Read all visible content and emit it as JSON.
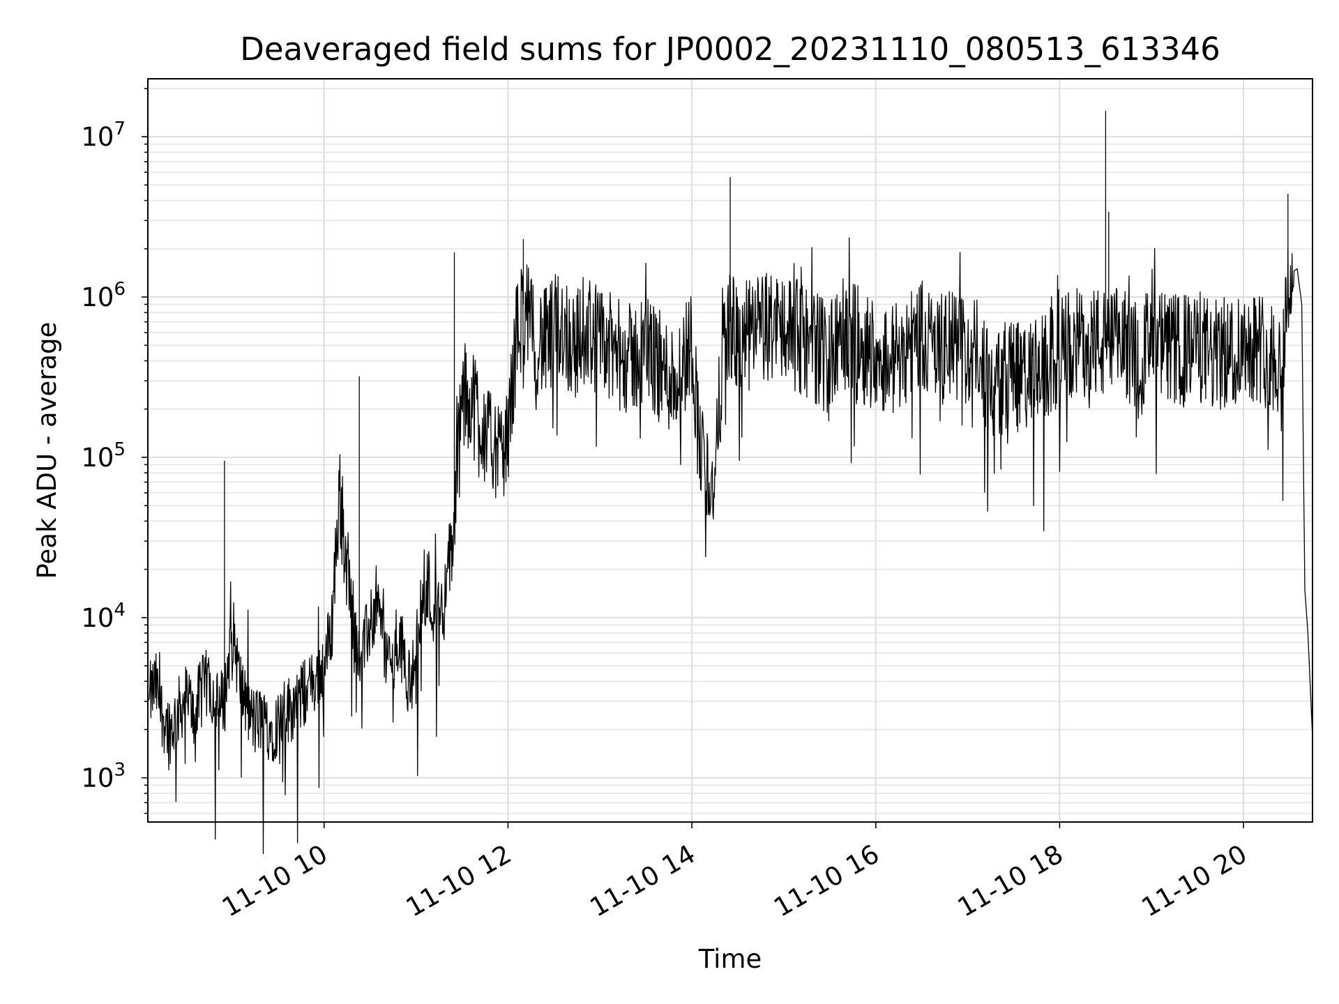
{
  "chart_data": {
    "type": "line",
    "title": "Deaveraged field sums for JP0002_20231110_080513_613346",
    "xlabel": "Time",
    "ylabel": "Peak ADU - average",
    "yscale": "log",
    "grid": true,
    "grid_minor": true,
    "xlim": [
      "2023-11-10 08:05",
      "2023-11-10 20:45"
    ],
    "ylim": [
      530,
      23000000
    ],
    "x_ticks": [
      {
        "t": "2023-11-10 10:00",
        "label": "11-10 10"
      },
      {
        "t": "2023-11-10 12:00",
        "label": "11-10 12"
      },
      {
        "t": "2023-11-10 14:00",
        "label": "11-10 14"
      },
      {
        "t": "2023-11-10 16:00",
        "label": "11-10 16"
      },
      {
        "t": "2023-11-10 18:00",
        "label": "11-10 18"
      },
      {
        "t": "2023-11-10 20:00",
        "label": "11-10 20"
      }
    ],
    "y_ticks": [
      {
        "value": 1000,
        "base": "10",
        "exp": "3"
      },
      {
        "value": 10000,
        "base": "10",
        "exp": "4"
      },
      {
        "value": 100000,
        "base": "10",
        "exp": "5"
      },
      {
        "value": 1000000,
        "base": "10",
        "exp": "6"
      },
      {
        "value": 10000000,
        "base": "10",
        "exp": "7"
      }
    ],
    "line_color": "#000000",
    "series": [
      {
        "x": [
          "08:05",
          "08:10",
          "08:15",
          "08:20",
          "08:25",
          "08:30",
          "08:35",
          "08:40",
          "08:45",
          "08:50",
          "08:55",
          "09:00",
          "09:05",
          "09:10",
          "09:15",
          "09:20",
          "09:25",
          "09:30",
          "09:35",
          "09:40",
          "09:45",
          "09:50",
          "09:55",
          "10:00",
          "10:05",
          "10:10",
          "10:15",
          "10:20",
          "10:25",
          "10:30",
          "10:35",
          "10:40",
          "10:45",
          "10:50",
          "10:55",
          "11:00",
          "11:05",
          "11:10",
          "11:15",
          "11:20",
          "11:25",
          "11:30",
          "11:35",
          "11:40",
          "11:45",
          "11:50",
          "11:55",
          "12:00",
          "12:05",
          "12:10",
          "12:15",
          "12:20",
          "12:25",
          "12:30",
          "12:35",
          "12:40",
          "12:45",
          "12:50",
          "12:55",
          "13:00",
          "13:10",
          "13:20",
          "13:30",
          "13:40",
          "13:50",
          "14:00",
          "14:05",
          "14:10",
          "14:15",
          "14:20",
          "14:25",
          "14:30",
          "14:40",
          "14:50",
          "15:00",
          "15:10",
          "15:20",
          "15:30",
          "15:40",
          "15:50",
          "16:00",
          "16:10",
          "16:20",
          "16:30",
          "16:40",
          "16:50",
          "17:00",
          "17:10",
          "17:15",
          "17:20",
          "17:30",
          "17:40",
          "17:50",
          "18:00",
          "18:10",
          "18:20",
          "18:30",
          "18:35",
          "18:40",
          "18:50",
          "19:00",
          "19:10",
          "19:20",
          "19:30",
          "19:40",
          "19:50",
          "20:00",
          "20:10",
          "20:20",
          "20:25",
          "20:30",
          "20:35",
          "20:38",
          "20:40",
          "20:42",
          "20:45"
        ],
        "y": [
          3000,
          3800,
          2400,
          2000,
          2600,
          3200,
          2500,
          3500,
          4000,
          2800,
          3000,
          9000,
          4000,
          2600,
          2200,
          2400,
          2000,
          2200,
          2600,
          2800,
          3200,
          3600,
          4200,
          5000,
          9000,
          60000,
          20000,
          8000,
          6000,
          9000,
          12000,
          6000,
          5000,
          7000,
          4000,
          5000,
          20000,
          12000,
          10000,
          15000,
          40000,
          220000,
          250000,
          200000,
          150000,
          120000,
          100000,
          130000,
          500000,
          900000,
          600000,
          550000,
          500000,
          600000,
          700000,
          550000,
          500000,
          650000,
          600000,
          500000,
          450000,
          400000,
          500000,
          350000,
          300000,
          550000,
          120000,
          80000,
          60000,
          500000,
          700000,
          500000,
          600000,
          650000,
          700000,
          550000,
          500000,
          400000,
          600000,
          500000,
          450000,
          400000,
          500000,
          600000,
          450000,
          500000,
          450000,
          400000,
          250000,
          300000,
          350000,
          300000,
          350000,
          450000,
          500000,
          550000,
          480000,
          500000,
          520000,
          450000,
          500000,
          480000,
          450000,
          500000,
          420000,
          450000,
          520000,
          500000,
          420000,
          400000,
          1400000,
          1500000,
          900000,
          15000,
          8000,
          1800
        ]
      }
    ]
  }
}
